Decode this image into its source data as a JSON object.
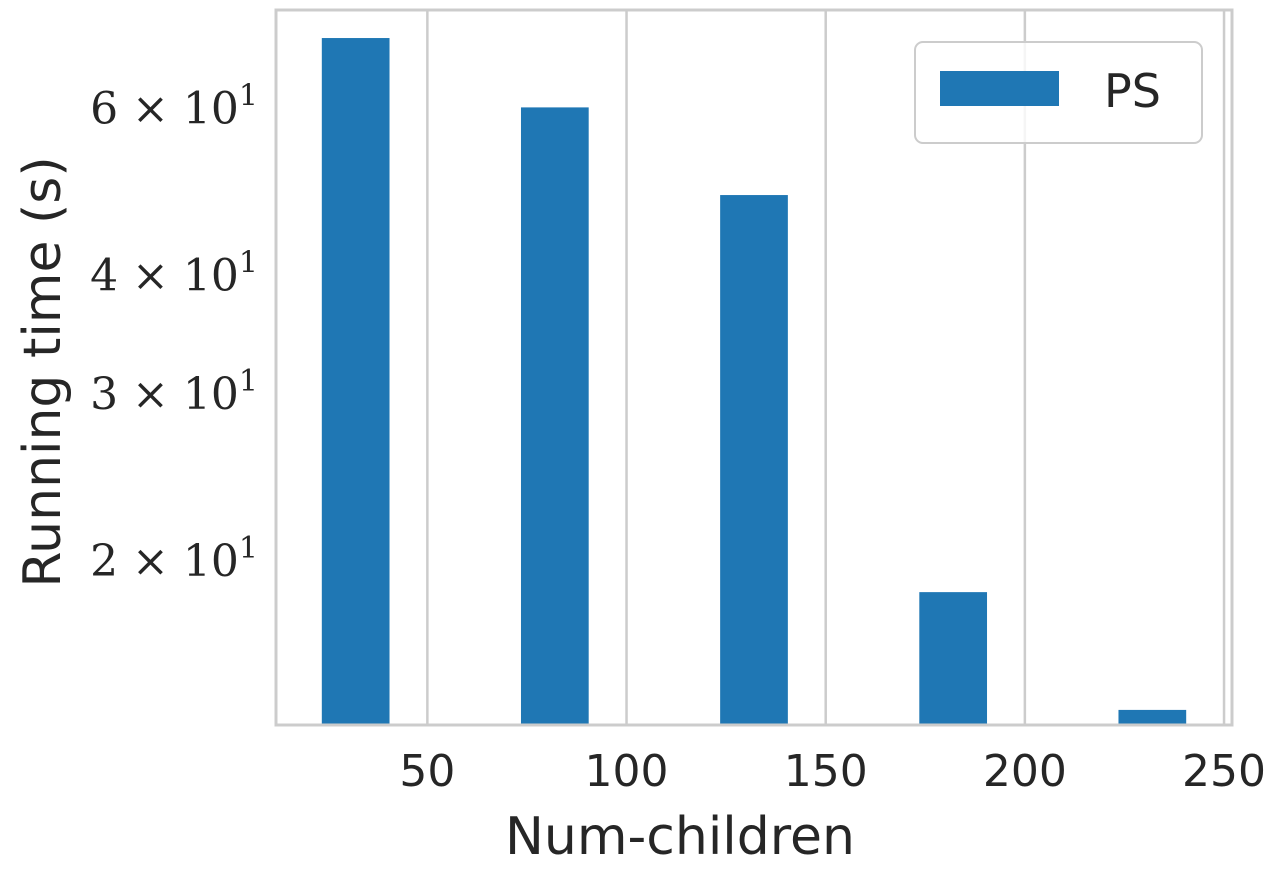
{
  "chart_data": {
    "type": "bar",
    "xlabel": "Num-children",
    "ylabel": "Running time (s)",
    "yscale": "log",
    "xlim": [
      12,
      252
    ],
    "ylim": [
      13.4,
      76
    ],
    "x_ticks": [
      50,
      100,
      150,
      200,
      250
    ],
    "y_ticks": [
      {
        "value": 20,
        "mantissa": "2",
        "base": "10",
        "exp": "1"
      },
      {
        "value": 30,
        "mantissa": "3",
        "base": "10",
        "exp": "1"
      },
      {
        "value": 40,
        "mantissa": "4",
        "base": "10",
        "exp": "1"
      },
      {
        "value": 60,
        "mantissa": "6",
        "base": "10",
        "exp": "1"
      }
    ],
    "grid": {
      "x": true,
      "y": false
    },
    "legend_position": "top-right",
    "series": [
      {
        "name": "PS",
        "color": "#1f77b4",
        "bar_width": 17,
        "x": [
          32,
          82,
          132,
          182,
          232
        ],
        "values": [
          71,
          60,
          48.5,
          18.5,
          13.9
        ]
      }
    ]
  }
}
